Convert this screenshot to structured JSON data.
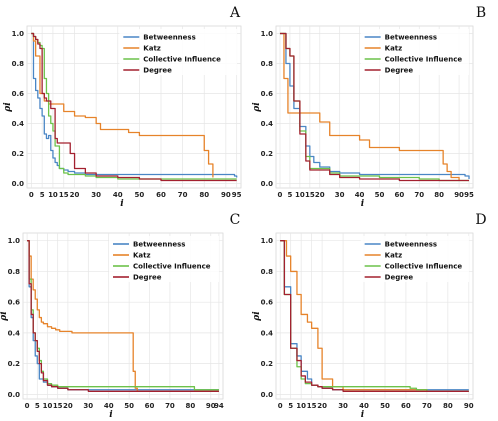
{
  "chart_data": [
    {
      "type": "line",
      "panel_label": "A",
      "xlabel": "i",
      "ylabel": "ρi",
      "xticks": [
        "0",
        "5",
        "10",
        "15",
        "20",
        "30",
        "40",
        "50",
        "60",
        "70",
        "80",
        "90",
        "95"
      ],
      "yticks": [
        "0.0",
        "0.2",
        "0.4",
        "0.6",
        "0.8",
        "1.0"
      ],
      "xlim": [
        -2,
        97
      ],
      "ylim": [
        -0.03,
        1.05
      ],
      "legend_position": "top-right",
      "grid": true,
      "series": [
        {
          "name": "Betweenness",
          "color": "#4a86c5",
          "x": [
            0,
            1,
            2,
            3,
            4,
            5,
            6,
            7,
            8,
            9,
            10,
            11,
            12,
            13,
            15,
            17,
            20,
            25,
            40,
            60,
            80,
            93,
            94,
            95
          ],
          "y": [
            1.0,
            0.7,
            0.62,
            0.57,
            0.5,
            0.45,
            0.33,
            0.3,
            0.32,
            0.22,
            0.17,
            0.14,
            0.12,
            0.1,
            0.09,
            0.08,
            0.07,
            0.06,
            0.06,
            0.06,
            0.06,
            0.06,
            0.05,
            0.04
          ]
        },
        {
          "name": "Katz",
          "color": "#e6832a",
          "x": [
            0,
            1,
            2,
            4,
            6,
            8,
            10,
            15,
            20,
            25,
            30,
            32,
            40,
            45,
            50,
            55,
            60,
            65,
            70,
            75,
            80,
            82,
            84
          ],
          "y": [
            1.0,
            0.95,
            0.85,
            0.6,
            0.55,
            0.53,
            0.53,
            0.48,
            0.45,
            0.44,
            0.4,
            0.36,
            0.36,
            0.34,
            0.32,
            0.32,
            0.32,
            0.32,
            0.32,
            0.32,
            0.22,
            0.13,
            0.04
          ]
        },
        {
          "name": "Collective Influence",
          "color": "#6cc24a",
          "x": [
            0,
            1,
            2,
            3,
            4,
            5,
            6,
            7,
            8,
            9,
            10,
            11,
            13,
            15,
            17,
            20,
            25,
            30,
            40,
            50,
            95
          ],
          "y": [
            1.0,
            0.98,
            0.96,
            0.94,
            0.92,
            0.9,
            0.7,
            0.6,
            0.45,
            0.4,
            0.35,
            0.25,
            0.1,
            0.07,
            0.06,
            0.06,
            0.05,
            0.04,
            0.03,
            0.03,
            0.03
          ]
        },
        {
          "name": "Degree",
          "color": "#a3202f",
          "x": [
            0,
            1,
            2,
            3,
            4,
            5,
            6,
            7,
            9,
            11,
            12,
            14,
            16,
            18,
            20,
            25,
            30,
            40,
            50,
            60,
            95
          ],
          "y": [
            1.0,
            0.98,
            0.96,
            0.93,
            0.9,
            0.6,
            0.57,
            0.55,
            0.5,
            0.3,
            0.27,
            0.27,
            0.27,
            0.2,
            0.1,
            0.07,
            0.05,
            0.04,
            0.03,
            0.02,
            0.02
          ]
        }
      ]
    },
    {
      "type": "line",
      "panel_label": "B",
      "xlabel": "i",
      "ylabel": "ρi",
      "xticks": [
        "0",
        "5",
        "10",
        "15",
        "20",
        "30",
        "40",
        "50",
        "60",
        "70",
        "80",
        "90",
        "95"
      ],
      "yticks": [
        "0.0",
        "0.2",
        "0.4",
        "0.6",
        "0.8",
        "1.0"
      ],
      "xlim": [
        -2,
        97
      ],
      "ylim": [
        -0.03,
        1.05
      ],
      "legend_position": "top-right",
      "grid": true,
      "series": [
        {
          "name": "Betweenness",
          "color": "#4a86c5",
          "x": [
            0,
            3,
            5,
            7,
            10,
            13,
            15,
            17,
            20,
            25,
            30,
            40,
            50,
            60,
            70,
            80,
            90,
            93,
            95
          ],
          "y": [
            1.0,
            0.8,
            0.65,
            0.5,
            0.38,
            0.25,
            0.18,
            0.14,
            0.11,
            0.08,
            0.07,
            0.06,
            0.06,
            0.06,
            0.06,
            0.06,
            0.06,
            0.05,
            0.03
          ]
        },
        {
          "name": "Katz",
          "color": "#e6832a",
          "x": [
            0,
            2,
            4,
            5,
            8,
            10,
            15,
            20,
            25,
            30,
            35,
            40,
            45,
            50,
            55,
            60,
            65,
            70,
            80,
            82,
            84,
            86,
            90
          ],
          "y": [
            1.0,
            0.7,
            0.47,
            0.47,
            0.47,
            0.47,
            0.47,
            0.41,
            0.32,
            0.32,
            0.32,
            0.29,
            0.24,
            0.24,
            0.24,
            0.22,
            0.22,
            0.22,
            0.22,
            0.13,
            0.08,
            0.04,
            0.02
          ]
        },
        {
          "name": "Collective Influence",
          "color": "#6cc24a",
          "x": [
            0,
            3,
            5,
            7,
            10,
            13,
            15,
            20,
            25,
            30,
            40,
            50,
            60,
            70,
            80,
            95
          ],
          "y": [
            1.0,
            0.9,
            0.85,
            0.55,
            0.35,
            0.18,
            0.1,
            0.1,
            0.07,
            0.05,
            0.05,
            0.04,
            0.04,
            0.03,
            0.02,
            0.02
          ]
        },
        {
          "name": "Degree",
          "color": "#a3202f",
          "x": [
            0,
            3,
            5,
            7,
            10,
            13,
            15,
            20,
            25,
            30,
            40,
            50,
            60,
            70,
            80,
            95
          ],
          "y": [
            1.0,
            0.9,
            0.85,
            0.55,
            0.33,
            0.15,
            0.09,
            0.09,
            0.06,
            0.04,
            0.03,
            0.03,
            0.02,
            0.02,
            0.02,
            0.02
          ]
        }
      ]
    },
    {
      "type": "line",
      "panel_label": "C",
      "xlabel": "i",
      "ylabel": "ρi",
      "xticks": [
        "0",
        "5",
        "10",
        "15",
        "20",
        "30",
        "40",
        "50",
        "60",
        "70",
        "80",
        "90",
        "94"
      ],
      "yticks": [
        "0.0",
        "0.2",
        "0.4",
        "0.6",
        "0.8",
        "1.0"
      ],
      "xlim": [
        -2,
        96
      ],
      "ylim": [
        -0.03,
        1.05
      ],
      "legend_position": "top-right",
      "grid": true,
      "series": [
        {
          "name": "Betweenness",
          "color": "#4a86c5",
          "x": [
            0,
            1,
            2,
            3,
            4,
            5,
            6,
            8,
            10,
            12,
            15,
            20,
            30,
            40,
            50,
            60,
            70,
            80,
            90,
            94
          ],
          "y": [
            1.0,
            0.7,
            0.5,
            0.35,
            0.25,
            0.2,
            0.1,
            0.08,
            0.06,
            0.05,
            0.04,
            0.03,
            0.03,
            0.03,
            0.03,
            0.03,
            0.03,
            0.03,
            0.03,
            0.03
          ]
        },
        {
          "name": "Katz",
          "color": "#e6832a",
          "x": [
            0,
            1,
            2,
            3,
            4,
            5,
            6,
            7,
            8,
            10,
            12,
            14,
            16,
            18,
            20,
            22,
            25,
            30,
            35,
            40,
            45,
            50,
            51,
            52,
            53,
            54,
            60,
            70,
            94
          ],
          "y": [
            1.0,
            0.9,
            0.75,
            0.68,
            0.62,
            0.55,
            0.5,
            0.47,
            0.46,
            0.44,
            0.43,
            0.42,
            0.41,
            0.41,
            0.41,
            0.4,
            0.4,
            0.4,
            0.4,
            0.4,
            0.4,
            0.4,
            0.4,
            0.15,
            0.04,
            0.02,
            0.02,
            0.02,
            0.02
          ]
        },
        {
          "name": "Collective Influence",
          "color": "#6cc24a",
          "x": [
            0,
            1,
            2,
            3,
            4,
            5,
            6,
            7,
            8,
            10,
            12,
            15,
            20,
            30,
            40,
            50,
            60,
            70,
            80,
            82,
            84,
            94
          ],
          "y": [
            1.0,
            0.75,
            0.55,
            0.4,
            0.35,
            0.3,
            0.22,
            0.15,
            0.1,
            0.07,
            0.06,
            0.05,
            0.05,
            0.05,
            0.05,
            0.05,
            0.05,
            0.05,
            0.05,
            0.03,
            0.03,
            0.03
          ]
        },
        {
          "name": "Degree",
          "color": "#a3202f",
          "x": [
            0,
            1,
            2,
            3,
            4,
            5,
            6,
            7,
            8,
            10,
            12,
            15,
            20,
            30,
            40,
            50,
            60,
            70,
            80,
            90,
            94
          ],
          "y": [
            1.0,
            0.72,
            0.52,
            0.4,
            0.35,
            0.28,
            0.2,
            0.14,
            0.09,
            0.06,
            0.05,
            0.04,
            0.03,
            0.02,
            0.02,
            0.02,
            0.02,
            0.02,
            0.02,
            0.02,
            0.02
          ]
        }
      ]
    },
    {
      "type": "line",
      "panel_label": "D",
      "xlabel": "i",
      "ylabel": "ρi",
      "xticks": [
        "0",
        "5",
        "10",
        "15",
        "20",
        "30",
        "40",
        "50",
        "60",
        "70",
        "80",
        "90"
      ],
      "yticks": [
        "0.0",
        "0.2",
        "0.4",
        "0.6",
        "0.8",
        "1.0"
      ],
      "xlim": [
        -2,
        92
      ],
      "ylim": [
        -0.03,
        1.05
      ],
      "legend_position": "top-right",
      "grid": true,
      "series": [
        {
          "name": "Betweenness",
          "color": "#4a86c5",
          "x": [
            0,
            2,
            5,
            8,
            10,
            13,
            15,
            18,
            20,
            25,
            30,
            40,
            50,
            60,
            70,
            80,
            90
          ],
          "y": [
            1.0,
            0.7,
            0.33,
            0.25,
            0.15,
            0.1,
            0.06,
            0.05,
            0.04,
            0.03,
            0.03,
            0.03,
            0.03,
            0.03,
            0.03,
            0.03,
            0.03
          ]
        },
        {
          "name": "Katz",
          "color": "#e6832a",
          "x": [
            0,
            3,
            5,
            8,
            10,
            13,
            15,
            18,
            20,
            25,
            30,
            40,
            50,
            60,
            65,
            70,
            90
          ],
          "y": [
            1.0,
            0.9,
            0.8,
            0.65,
            0.52,
            0.47,
            0.43,
            0.3,
            0.1,
            0.05,
            0.03,
            0.03,
            0.03,
            0.03,
            0.03,
            0.02,
            0.02
          ]
        },
        {
          "name": "Collective Influence",
          "color": "#6cc24a",
          "x": [
            0,
            2,
            5,
            8,
            10,
            12,
            15,
            18,
            20,
            25,
            30,
            40,
            50,
            60,
            62,
            65,
            70,
            90
          ],
          "y": [
            1.0,
            0.65,
            0.3,
            0.18,
            0.1,
            0.07,
            0.06,
            0.05,
            0.05,
            0.05,
            0.05,
            0.05,
            0.05,
            0.05,
            0.04,
            0.03,
            0.02,
            0.02
          ]
        },
        {
          "name": "Degree",
          "color": "#a3202f",
          "x": [
            0,
            2,
            5,
            8,
            10,
            12,
            15,
            18,
            20,
            25,
            30,
            40,
            50,
            60,
            70,
            80,
            90
          ],
          "y": [
            1.0,
            0.65,
            0.3,
            0.22,
            0.12,
            0.08,
            0.06,
            0.05,
            0.04,
            0.03,
            0.02,
            0.02,
            0.02,
            0.02,
            0.02,
            0.02,
            0.02
          ]
        }
      ]
    }
  ]
}
